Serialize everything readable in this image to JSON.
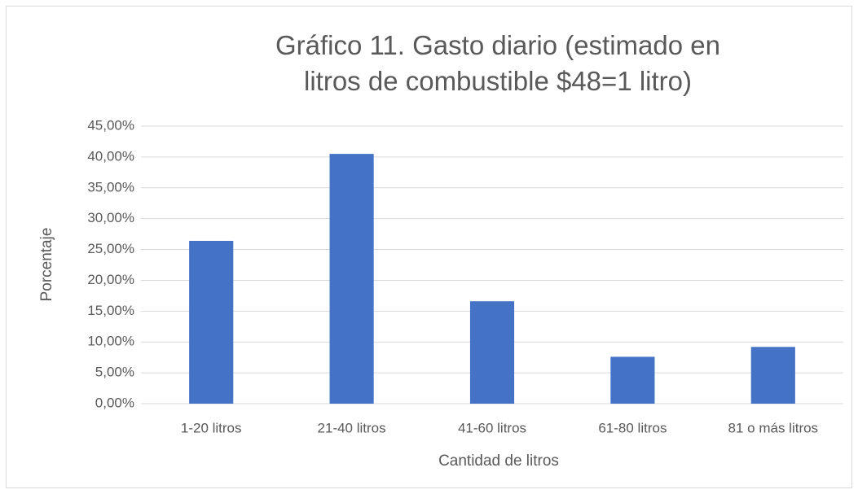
{
  "chart_data": {
    "type": "bar",
    "title": "Gráfico 11. Gasto diario (estimado en litros de combustible $48=1 litro)",
    "x_label": "Cantidad de litros",
    "y_label": "Porcentaje",
    "categories": [
      "1-20 litros",
      "21-40 litros",
      "41-60 litros",
      "61-80 litros",
      "81 o más litros"
    ],
    "values": [
      26.4,
      40.5,
      16.6,
      7.6,
      9.2
    ],
    "color": "#4472c4",
    "ylim": [
      0,
      45
    ],
    "yticks": [
      {
        "value": 0,
        "label": "0,00%"
      },
      {
        "value": 5,
        "label": "5,00%"
      },
      {
        "value": 10,
        "label": "10,00%"
      },
      {
        "value": 15,
        "label": "15,00%"
      },
      {
        "value": 20,
        "label": "20,00%"
      },
      {
        "value": 25,
        "label": "25,00%"
      },
      {
        "value": 30,
        "label": "30,00%"
      },
      {
        "value": 35,
        "label": "35,00%"
      },
      {
        "value": 40,
        "label": "40,00%"
      },
      {
        "value": 45,
        "label": "45,00%"
      }
    ],
    "grid": true
  }
}
